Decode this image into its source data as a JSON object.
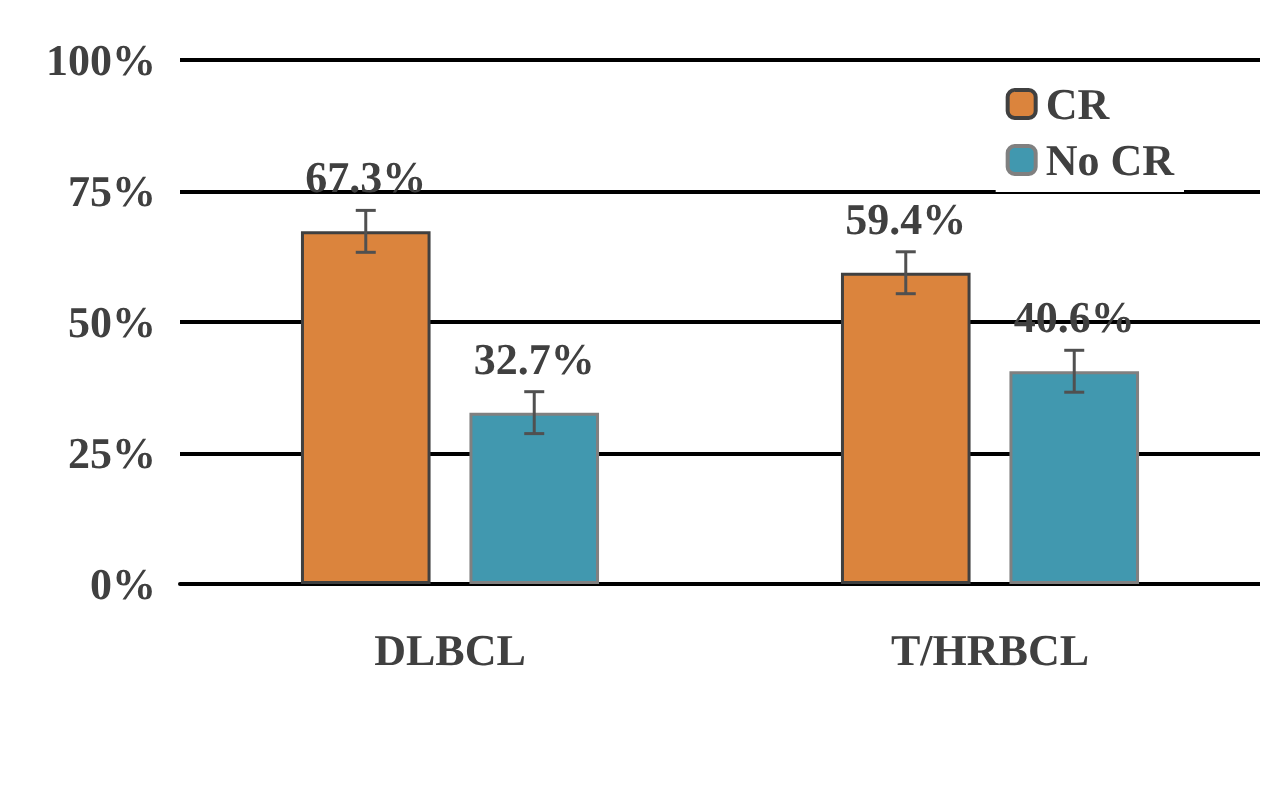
{
  "chart_data": {
    "type": "bar",
    "categories": [
      "DLBCL",
      "T/HRBCL"
    ],
    "series": [
      {
        "name": "CR",
        "color": "#db843d",
        "values": [
          67.3,
          59.4
        ],
        "errors": [
          4,
          4
        ],
        "value_labels": [
          "67.3%",
          "59.4%"
        ]
      },
      {
        "name": "No CR",
        "color": "#4198af",
        "values": [
          32.7,
          40.6
        ],
        "errors": [
          4,
          4
        ],
        "value_labels": [
          "32.7%",
          "40.6%"
        ]
      }
    ],
    "ylim": [
      0,
      100
    ],
    "yticks": [
      {
        "value": 0,
        "label": "0%"
      },
      {
        "value": 25,
        "label": "25%"
      },
      {
        "value": 50,
        "label": "50%"
      },
      {
        "value": 75,
        "label": "75%"
      },
      {
        "value": 100,
        "label": "100%"
      }
    ],
    "grid": "y",
    "legend": "top right"
  }
}
